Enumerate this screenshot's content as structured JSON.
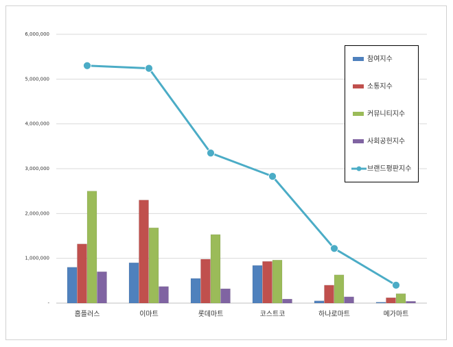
{
  "chart_data": {
    "type": "bar",
    "categories": [
      "홈플러스",
      "이마트",
      "롯데마트",
      "코스트코",
      "하나로마트",
      "메가마트"
    ],
    "series": [
      {
        "name": "참여지수",
        "color": "#4f81bd",
        "values": [
          800000,
          900000,
          550000,
          840000,
          50000,
          20000
        ]
      },
      {
        "name": "소통지수",
        "color": "#c0504d",
        "values": [
          1320000,
          2300000,
          980000,
          930000,
          400000,
          120000
        ]
      },
      {
        "name": "커뮤니티지수",
        "color": "#9bbb59",
        "values": [
          2500000,
          1680000,
          1530000,
          960000,
          630000,
          210000
        ]
      },
      {
        "name": "사회공헌지수",
        "color": "#8064a2",
        "values": [
          700000,
          370000,
          320000,
          90000,
          140000,
          40000
        ]
      },
      {
        "name": "브랜드평판지수",
        "color": "#4bacc6",
        "type": "line",
        "values": [
          5300000,
          5240000,
          3350000,
          2830000,
          1220000,
          400000
        ]
      }
    ],
    "ylim": [
      0,
      6000000
    ],
    "yticks": [
      {
        "value": 0,
        "label": "-"
      },
      {
        "value": 1000000,
        "label": "1,000,000"
      },
      {
        "value": 2000000,
        "label": "2,000,000"
      },
      {
        "value": 3000000,
        "label": "3,000,000"
      },
      {
        "value": 4000000,
        "label": "4,000,000"
      },
      {
        "value": 5000000,
        "label": "5,000,000"
      },
      {
        "value": 6000000,
        "label": "6,000,000"
      }
    ],
    "grid": true,
    "legend": "right"
  }
}
